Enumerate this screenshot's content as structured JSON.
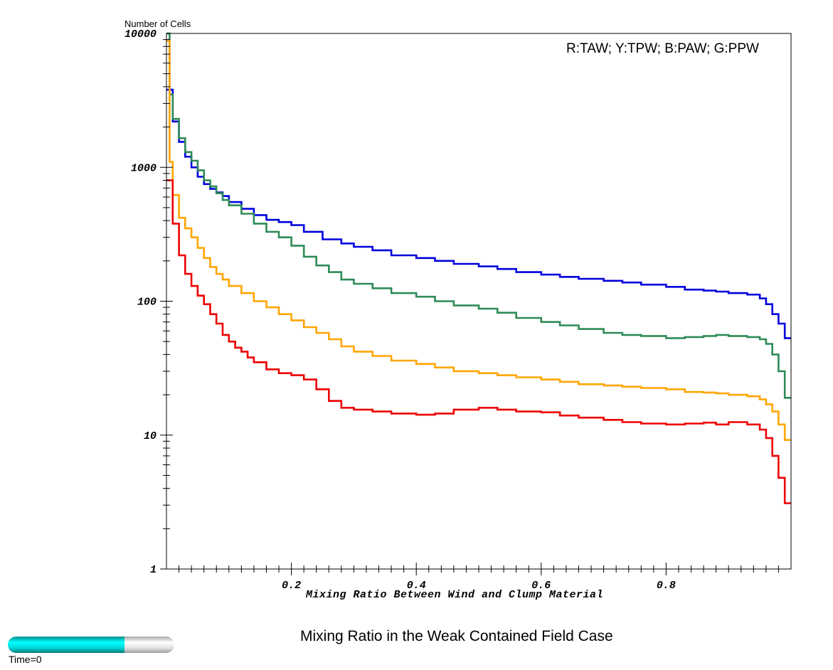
{
  "chart_data": {
    "type": "line",
    "title": "Mixing Ratio in the Weak Contained Field Case",
    "xlabel": "Mixing Ratio Between Wind and Clump Material",
    "ylabel": "Number of Cells",
    "legend_text": "R:TAW; Y:TPW; B:PAW; G:PPW",
    "xlim": [
      0,
      1
    ],
    "ylim": [
      1,
      10000
    ],
    "yscale": "log",
    "x_ticks": [
      0.2,
      0.4,
      0.6,
      0.8
    ],
    "x_tick_labels": [
      "0.2",
      "0.4",
      "0.6",
      "0.8"
    ],
    "y_ticks": [
      1,
      10,
      100,
      1000,
      10000
    ],
    "y_tick_labels": [
      "1",
      "10",
      "100",
      "1000",
      "10000"
    ],
    "grid": false,
    "series": [
      {
        "color": "#0000dd",
        "x": [
          0.01,
          0.02,
          0.03,
          0.04,
          0.05,
          0.06,
          0.07,
          0.08,
          0.09,
          0.1,
          0.12,
          0.14,
          0.16,
          0.18,
          0.2,
          0.22,
          0.25,
          0.28,
          0.3,
          0.33,
          0.36,
          0.4,
          0.43,
          0.46,
          0.5,
          0.53,
          0.56,
          0.6,
          0.63,
          0.66,
          0.7,
          0.73,
          0.76,
          0.8,
          0.83,
          0.86,
          0.88,
          0.9,
          0.93,
          0.95,
          0.96,
          0.97,
          0.98,
          0.99,
          1.0
        ],
        "y": [
          3800,
          2200,
          1550,
          1200,
          1000,
          850,
          750,
          690,
          650,
          610,
          550,
          490,
          440,
          405,
          390,
          370,
          330,
          290,
          270,
          255,
          240,
          220,
          210,
          200,
          190,
          182,
          174,
          165,
          158,
          152,
          147,
          142,
          138,
          133,
          128,
          122,
          120,
          118,
          115,
          112,
          105,
          95,
          80,
          68,
          53
        ]
      },
      {
        "color": "#2e8b57",
        "x": [
          0.005,
          0.01,
          0.02,
          0.03,
          0.04,
          0.05,
          0.06,
          0.07,
          0.08,
          0.09,
          0.1,
          0.12,
          0.14,
          0.16,
          0.18,
          0.2,
          0.22,
          0.24,
          0.26,
          0.28,
          0.3,
          0.33,
          0.36,
          0.4,
          0.43,
          0.46,
          0.5,
          0.53,
          0.56,
          0.6,
          0.63,
          0.66,
          0.7,
          0.73,
          0.76,
          0.8,
          0.83,
          0.86,
          0.88,
          0.9,
          0.93,
          0.95,
          0.96,
          0.97,
          0.98,
          0.99,
          1.0
        ],
        "y": [
          10000,
          3500,
          2300,
          1650,
          1300,
          1120,
          950,
          800,
          720,
          640,
          570,
          520,
          450,
          380,
          330,
          300,
          260,
          215,
          185,
          165,
          145,
          135,
          125,
          115,
          108,
          100,
          93,
          88,
          82,
          75,
          70,
          66,
          62,
          58,
          56,
          55,
          53,
          54,
          55,
          56,
          55,
          54,
          52,
          48,
          40,
          30,
          19
        ]
      },
      {
        "color": "#ffa500",
        "x": [
          0.005,
          0.01,
          0.02,
          0.03,
          0.04,
          0.05,
          0.06,
          0.07,
          0.08,
          0.09,
          0.1,
          0.12,
          0.14,
          0.16,
          0.18,
          0.2,
          0.22,
          0.24,
          0.26,
          0.28,
          0.3,
          0.33,
          0.36,
          0.4,
          0.43,
          0.46,
          0.5,
          0.53,
          0.56,
          0.6,
          0.63,
          0.66,
          0.7,
          0.73,
          0.76,
          0.8,
          0.83,
          0.86,
          0.88,
          0.9,
          0.93,
          0.95,
          0.96,
          0.97,
          0.98,
          0.99,
          1.0
        ],
        "y": [
          8800,
          1100,
          620,
          420,
          350,
          300,
          250,
          210,
          180,
          160,
          145,
          130,
          115,
          100,
          90,
          80,
          72,
          64,
          58,
          52,
          46,
          42,
          39,
          36,
          34,
          32,
          30,
          29,
          28,
          27,
          26,
          25,
          24,
          23.5,
          23,
          22.5,
          22,
          21,
          20.8,
          20.5,
          20,
          19.5,
          18.5,
          17,
          15,
          12,
          9.2
        ]
      },
      {
        "color": "#ee0000",
        "x": [
          0.01,
          0.02,
          0.03,
          0.04,
          0.05,
          0.06,
          0.07,
          0.08,
          0.09,
          0.1,
          0.11,
          0.12,
          0.13,
          0.14,
          0.16,
          0.18,
          0.2,
          0.22,
          0.24,
          0.26,
          0.28,
          0.3,
          0.33,
          0.36,
          0.4,
          0.43,
          0.46,
          0.5,
          0.53,
          0.56,
          0.6,
          0.63,
          0.66,
          0.7,
          0.73,
          0.76,
          0.8,
          0.83,
          0.86,
          0.88,
          0.9,
          0.93,
          0.95,
          0.96,
          0.97,
          0.98,
          0.99,
          1.0
        ],
        "y": [
          800,
          380,
          220,
          160,
          130,
          110,
          95,
          80,
          68,
          56,
          50,
          45,
          42,
          38,
          35,
          31,
          29,
          28,
          26,
          22,
          18,
          16,
          15.5,
          15,
          14.5,
          14.2,
          14.5,
          15.5,
          16,
          15.5,
          15,
          14.8,
          14,
          13.5,
          13,
          12.5,
          12.2,
          12,
          12.2,
          12.4,
          12,
          12.5,
          12,
          11,
          9.5,
          7,
          4.8,
          3.1
        ]
      }
    ]
  },
  "time": {
    "label": "Time=0",
    "progress": 0.7
  }
}
